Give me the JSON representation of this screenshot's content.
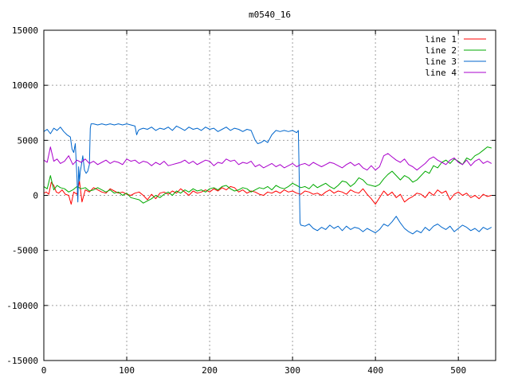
{
  "chart_data": {
    "type": "line",
    "title": "m0540_16",
    "xlabel": "",
    "ylabel": "",
    "xlim": [
      0,
      545
    ],
    "ylim": [
      -15000,
      15000
    ],
    "grid": true,
    "legend_position": "top-right",
    "x_ticks": [
      0,
      100,
      200,
      300,
      400,
      500
    ],
    "y_ticks": [
      -15000,
      -10000,
      -5000,
      0,
      5000,
      10000,
      15000
    ],
    "series": [
      {
        "name": "line 1",
        "color": "#ff0000",
        "x": [
          0,
          3,
          6,
          9,
          12,
          15,
          18,
          22,
          26,
          30,
          33,
          36,
          40,
          43,
          46,
          50,
          55,
          60,
          65,
          70,
          75,
          80,
          85,
          90,
          95,
          100,
          105,
          110,
          115,
          120,
          125,
          130,
          135,
          140,
          145,
          150,
          155,
          160,
          165,
          170,
          175,
          180,
          185,
          190,
          195,
          200,
          205,
          210,
          215,
          220,
          225,
          230,
          235,
          240,
          245,
          250,
          255,
          260,
          265,
          270,
          275,
          280,
          285,
          290,
          295,
          300,
          305,
          310,
          315,
          320,
          325,
          330,
          335,
          340,
          345,
          350,
          355,
          360,
          365,
          370,
          375,
          380,
          385,
          390,
          395,
          400,
          405,
          410,
          415,
          420,
          425,
          430,
          435,
          440,
          445,
          450,
          455,
          460,
          465,
          470,
          475,
          480,
          485,
          490,
          495,
          500,
          505,
          510,
          515,
          520,
          525,
          530,
          535,
          540
        ],
        "values": [
          200,
          300,
          100,
          1200,
          900,
          300,
          200,
          500,
          100,
          0,
          -800,
          300,
          100,
          1300,
          -600,
          500,
          300,
          700,
          500,
          300,
          200,
          600,
          400,
          200,
          300,
          100,
          0,
          200,
          300,
          0,
          -400,
          100,
          -300,
          200,
          300,
          100,
          400,
          200,
          600,
          300,
          0,
          400,
          200,
          300,
          500,
          300,
          600,
          400,
          700,
          500,
          800,
          700,
          300,
          500,
          200,
          400,
          300,
          100,
          0,
          300,
          200,
          400,
          200,
          500,
          300,
          400,
          200,
          100,
          400,
          300,
          100,
          200,
          0,
          300,
          500,
          200,
          400,
          300,
          100,
          500,
          300,
          200,
          600,
          100,
          -300,
          -800,
          -200,
          400,
          0,
          300,
          -200,
          100,
          -600,
          -300,
          -100,
          200,
          100,
          -200,
          300,
          0,
          500,
          200,
          400,
          -400,
          100,
          300,
          0,
          200,
          -200,
          0,
          -300,
          100,
          -100,
          0
        ]
      },
      {
        "name": "line 2",
        "color": "#00aa00",
        "x": [
          0,
          4,
          8,
          12,
          16,
          20,
          25,
          30,
          35,
          40,
          45,
          50,
          55,
          60,
          65,
          70,
          75,
          80,
          85,
          90,
          95,
          100,
          105,
          110,
          115,
          120,
          125,
          130,
          135,
          140,
          145,
          150,
          155,
          160,
          165,
          170,
          175,
          180,
          185,
          190,
          195,
          200,
          205,
          210,
          215,
          220,
          225,
          230,
          235,
          240,
          245,
          250,
          255,
          260,
          265,
          270,
          275,
          280,
          285,
          290,
          295,
          300,
          305,
          310,
          315,
          320,
          325,
          330,
          335,
          340,
          345,
          350,
          355,
          360,
          365,
          370,
          375,
          380,
          385,
          390,
          395,
          400,
          405,
          410,
          415,
          420,
          425,
          430,
          435,
          440,
          445,
          450,
          455,
          460,
          465,
          470,
          475,
          480,
          485,
          490,
          495,
          500,
          505,
          510,
          515,
          520,
          525,
          530,
          535,
          540
        ],
        "values": [
          800,
          600,
          1800,
          500,
          900,
          700,
          600,
          300,
          500,
          800,
          600,
          700,
          400,
          500,
          700,
          500,
          300,
          500,
          200,
          300,
          0,
          200,
          -200,
          -300,
          -400,
          -700,
          -500,
          -300,
          0,
          -200,
          100,
          300,
          0,
          400,
          200,
          500,
          300,
          600,
          400,
          500,
          300,
          600,
          700,
          500,
          800,
          900,
          600,
          400,
          500,
          700,
          600,
          300,
          500,
          700,
          600,
          800,
          500,
          900,
          700,
          600,
          800,
          1100,
          900,
          700,
          800,
          600,
          1000,
          700,
          900,
          1100,
          800,
          600,
          900,
          1300,
          1200,
          800,
          1100,
          1600,
          1400,
          1000,
          900,
          800,
          1000,
          1500,
          1900,
          2200,
          1800,
          1400,
          1800,
          1600,
          1200,
          1400,
          1800,
          2200,
          2000,
          2700,
          2500,
          3000,
          3200,
          2900,
          3300,
          3100,
          2800,
          3400,
          3200,
          3600,
          3800,
          4100,
          4400,
          4300
        ]
      },
      {
        "name": "line 3",
        "color": "#0066cc",
        "x": [
          0,
          4,
          8,
          12,
          16,
          20,
          24,
          28,
          32,
          34,
          36,
          38,
          40,
          41,
          42,
          43,
          44,
          45,
          47,
          49,
          51,
          53,
          55,
          56,
          57,
          60,
          65,
          70,
          75,
          80,
          85,
          90,
          95,
          100,
          105,
          110,
          112,
          114,
          116,
          120,
          125,
          130,
          135,
          140,
          145,
          150,
          155,
          160,
          165,
          170,
          175,
          180,
          185,
          190,
          195,
          200,
          205,
          210,
          215,
          220,
          225,
          230,
          235,
          240,
          245,
          250,
          255,
          258,
          262,
          266,
          270,
          275,
          280,
          285,
          290,
          295,
          300,
          305,
          307,
          308,
          309,
          310,
          315,
          320,
          325,
          330,
          335,
          340,
          345,
          350,
          355,
          360,
          365,
          370,
          375,
          380,
          385,
          390,
          395,
          400,
          405,
          410,
          415,
          420,
          425,
          430,
          435,
          440,
          445,
          450,
          455,
          460,
          465,
          470,
          475,
          480,
          485,
          490,
          495,
          500,
          505,
          510,
          515,
          520,
          525,
          530,
          535,
          540
        ],
        "values": [
          5800,
          6000,
          5600,
          6100,
          5900,
          6200,
          5800,
          5500,
          5300,
          4200,
          3900,
          4700,
          1600,
          -600,
          2600,
          1300,
          2200,
          2600,
          3600,
          2300,
          2000,
          2200,
          2800,
          6100,
          6500,
          6500,
          6400,
          6500,
          6400,
          6500,
          6400,
          6500,
          6400,
          6500,
          6400,
          6300,
          5500,
          5900,
          6000,
          6100,
          6000,
          6200,
          5900,
          6100,
          6000,
          6200,
          5900,
          6300,
          6100,
          5900,
          6200,
          6000,
          6100,
          5900,
          6200,
          6000,
          6100,
          5800,
          6000,
          6200,
          5900,
          6100,
          6000,
          5800,
          6000,
          5900,
          5000,
          4700,
          4800,
          5000,
          4800,
          5500,
          5900,
          5800,
          5900,
          5800,
          5900,
          5700,
          5900,
          2000,
          -2500,
          -2700,
          -2800,
          -2600,
          -3000,
          -3200,
          -2900,
          -3100,
          -2700,
          -3000,
          -2800,
          -3200,
          -2800,
          -3100,
          -2900,
          -3000,
          -3300,
          -3000,
          -3200,
          -3400,
          -3100,
          -2600,
          -2800,
          -2400,
          -1900,
          -2500,
          -3000,
          -3300,
          -3500,
          -3200,
          -3400,
          -2900,
          -3200,
          -2800,
          -2600,
          -2900,
          -3100,
          -2800,
          -3300,
          -3000,
          -2700,
          -2900,
          -3200,
          -3000,
          -3300,
          -2900,
          -3100,
          -2900
        ]
      },
      {
        "name": "line 4",
        "color": "#aa00cc",
        "x": [
          0,
          4,
          8,
          12,
          16,
          20,
          25,
          30,
          35,
          40,
          45,
          50,
          55,
          60,
          65,
          70,
          75,
          80,
          85,
          90,
          95,
          100,
          105,
          110,
          115,
          120,
          125,
          130,
          135,
          140,
          145,
          150,
          155,
          160,
          165,
          170,
          175,
          180,
          185,
          190,
          195,
          200,
          205,
          210,
          215,
          220,
          225,
          230,
          235,
          240,
          245,
          250,
          255,
          260,
          265,
          270,
          275,
          280,
          285,
          290,
          295,
          300,
          305,
          310,
          315,
          320,
          325,
          330,
          335,
          340,
          345,
          350,
          355,
          360,
          365,
          370,
          375,
          380,
          385,
          390,
          395,
          400,
          405,
          410,
          415,
          420,
          425,
          430,
          435,
          440,
          445,
          450,
          455,
          460,
          465,
          470,
          475,
          480,
          485,
          490,
          495,
          500,
          505,
          510,
          515,
          520,
          525,
          530,
          535,
          540
        ],
        "values": [
          3200,
          3000,
          4400,
          3100,
          3300,
          2900,
          3100,
          3600,
          2800,
          3200,
          3000,
          3300,
          2900,
          3100,
          2800,
          3000,
          3200,
          2900,
          3100,
          3000,
          2800,
          3300,
          3100,
          3200,
          2900,
          3100,
          3000,
          2700,
          3000,
          2800,
          3100,
          2700,
          2800,
          2900,
          3000,
          3200,
          2900,
          3100,
          2800,
          3000,
          3200,
          3100,
          2700,
          3000,
          2900,
          3300,
          3100,
          3200,
          2800,
          3000,
          2900,
          3100,
          2600,
          2800,
          2500,
          2700,
          2900,
          2600,
          2800,
          2500,
          2700,
          2900,
          2600,
          2800,
          2900,
          2700,
          3000,
          2800,
          2600,
          2800,
          3000,
          2900,
          2700,
          2500,
          2800,
          3000,
          2700,
          2900,
          2500,
          2300,
          2700,
          2300,
          2600,
          3600,
          3800,
          3500,
          3200,
          3000,
          3300,
          2800,
          2600,
          2300,
          2600,
          2900,
          3300,
          3500,
          3200,
          3000,
          2800,
          3200,
          3400,
          3000,
          2800,
          3200,
          2700,
          3100,
          3300,
          2900,
          3100,
          2900
        ]
      }
    ]
  }
}
